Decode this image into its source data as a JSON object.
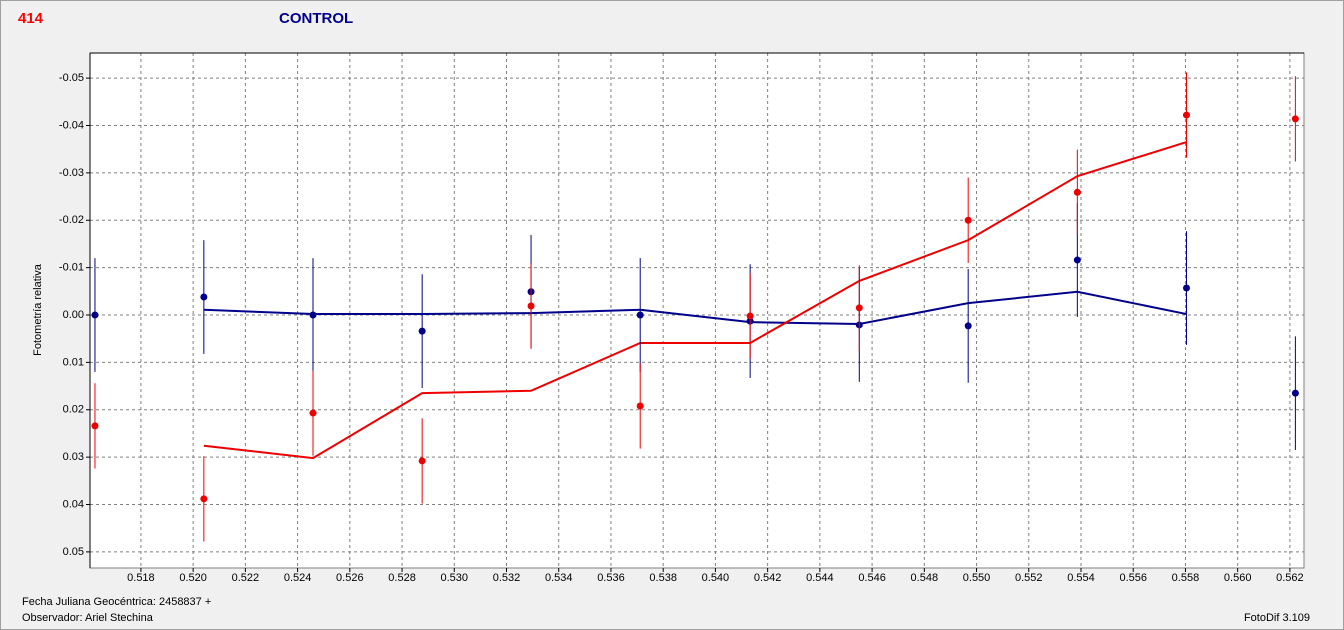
{
  "chart_data": {
    "type": "scatter",
    "title": "414",
    "subtitle": "CONTROL",
    "ylabel": "Fotometría relativa",
    "xlabel": "Fecha Juliana Geocéntrica: 2458837 +",
    "observer": "Observador: Ariel Stechina",
    "software": "FotoDif 3.109",
    "title_color": "#ff0000",
    "subtitle_color": "#00008b",
    "grid": true,
    "y_inverted": true,
    "xlim": [
      0.51605,
      0.56254
    ],
    "ylim": [
      -0.0553,
      0.0534
    ],
    "xticks": [
      0.518,
      {
        "value": 0.52,
        "label": "0.520"
      },
      0.522,
      0.524,
      0.526,
      0.528,
      {
        "value": 0.53,
        "label": "0.530"
      },
      0.532,
      0.534,
      0.536,
      0.538,
      {
        "value": 0.54,
        "label": "0.540"
      },
      0.542,
      0.544,
      0.546,
      0.548,
      {
        "value": 0.55,
        "label": "0.550"
      },
      0.552,
      0.554,
      0.556,
      0.558,
      {
        "value": 0.56,
        "label": "0.560"
      },
      0.562
    ],
    "yticks": [
      -0.05,
      -0.04,
      -0.03,
      -0.02,
      -0.01,
      {
        "value": 0,
        "label": "0.00"
      },
      0.01,
      0.02,
      0.03,
      0.04,
      0.05
    ],
    "x": [
      0.51624,
      0.52041,
      0.52459,
      0.52877,
      0.53294,
      0.53712,
      0.54133,
      0.54551,
      0.54968,
      0.55386,
      0.55804,
      0.56221
    ],
    "series": [
      {
        "color": "#00008b",
        "values": [
          0.0,
          -0.0038,
          0.0,
          0.0034,
          -0.0049,
          0.0,
          0.0013,
          0.0021,
          0.0023,
          -0.0116,
          -0.0057,
          0.0165
        ],
        "errors": [
          0.012,
          0.012,
          0.012,
          0.012,
          0.012,
          0.012,
          0.012,
          0.012,
          0.012,
          0.012,
          0.012,
          0.012
        ]
      },
      {
        "color": "#ee0000",
        "values": [
          0.0234,
          0.0388,
          0.0207,
          0.0308,
          -0.0019,
          0.0192,
          0.0002,
          -0.0015,
          -0.02,
          -0.0259,
          -0.0422,
          -0.0414
        ],
        "errors": [
          0.009,
          0.009,
          0.009,
          0.009,
          0.009,
          0.009,
          0.009,
          0.009,
          0.009,
          0.009,
          0.009,
          0.009
        ]
      }
    ],
    "lines": [
      {
        "color": "#00008b",
        "x": [
          0.52041,
          0.52459,
          0.52877,
          0.53294,
          0.53712,
          0.54133,
          0.54551,
          0.54968,
          0.55386,
          0.55804
        ],
        "values": [
          -0.0011,
          -0.0002,
          -0.0002,
          -0.0004,
          -0.0011,
          0.0015,
          0.0019,
          -0.0025,
          -0.0049,
          -0.0002
        ]
      },
      {
        "color": "#ee0000",
        "x": [
          0.52041,
          0.52459,
          0.52877,
          0.53294,
          0.53712,
          0.54133,
          0.54551,
          0.54968,
          0.55386,
          0.55804
        ],
        "values": [
          0.0276,
          0.0302,
          0.0165,
          0.016,
          0.0059,
          0.0059,
          -0.0072,
          -0.0158,
          -0.0293,
          -0.0365
        ]
      }
    ]
  }
}
